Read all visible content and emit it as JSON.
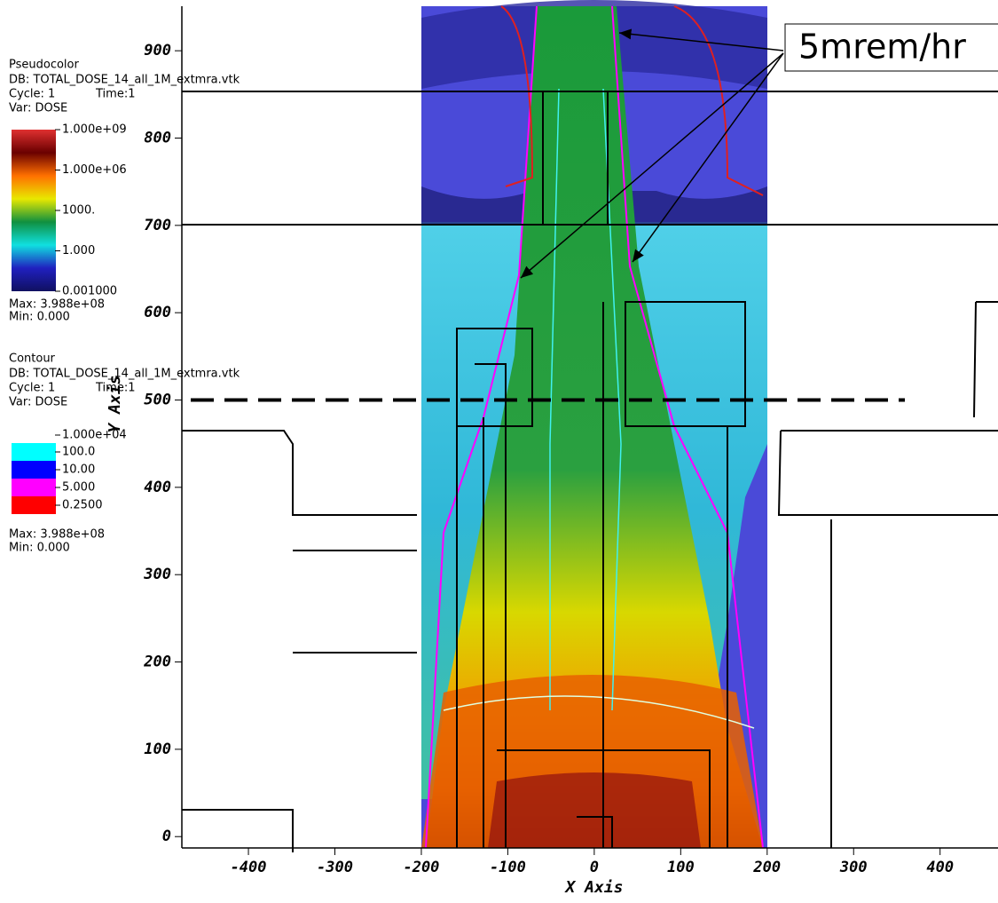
{
  "chart_data": {
    "type": "contour",
    "x_label": "X Axis",
    "y_label": "Y Axis",
    "xlim": [
      -477,
      467
    ],
    "ylim": [
      -13,
      951
    ],
    "xticks": [
      -400,
      -300,
      -200,
      -100,
      0,
      100,
      200,
      300,
      400
    ],
    "yticks": [
      0,
      100,
      200,
      300,
      400,
      500,
      600,
      700,
      800,
      900
    ],
    "field_xlim": [
      -200,
      200
    ],
    "reference_line_y": 500,
    "annotation": "5mrem/hr",
    "pseudocolor_legend": {
      "plot": "Pseudocolor",
      "db": "DB: TOTAL_DOSE_14_all_1M_extmra.vtk",
      "cycle": "Cycle: 1",
      "time": "Time:1",
      "var": "Var: DOSE",
      "labels": [
        "1.000e+09",
        "1.000e+06",
        "1000.",
        "1.000",
        "0.001000"
      ],
      "colormap": [
        "#e03030",
        "#6a0000",
        "#ff7000",
        "#e8e800",
        "#109040",
        "#10e0e0",
        "#2020c0",
        "#101060"
      ],
      "max": "Max:  3.988e+08",
      "min": "Min:  0.000"
    },
    "contour_legend": {
      "plot": "Contour",
      "db": "DB: TOTAL_DOSE_14_all_1M_extmra.vtk",
      "cycle": "Cycle: 1",
      "time": "Time:1",
      "var": "Var: DOSE",
      "top_label": "1.000e+04",
      "levels": [
        {
          "label": "100.0",
          "color": "#00ffff"
        },
        {
          "label": "10.00",
          "color": "#0000ff"
        },
        {
          "label": "5.000",
          "color": "#ff00ff"
        },
        {
          "label": "0.2500",
          "color": "#ff0000"
        }
      ],
      "max": "Max:  3.988e+08",
      "min": "Min:  0.000"
    }
  }
}
